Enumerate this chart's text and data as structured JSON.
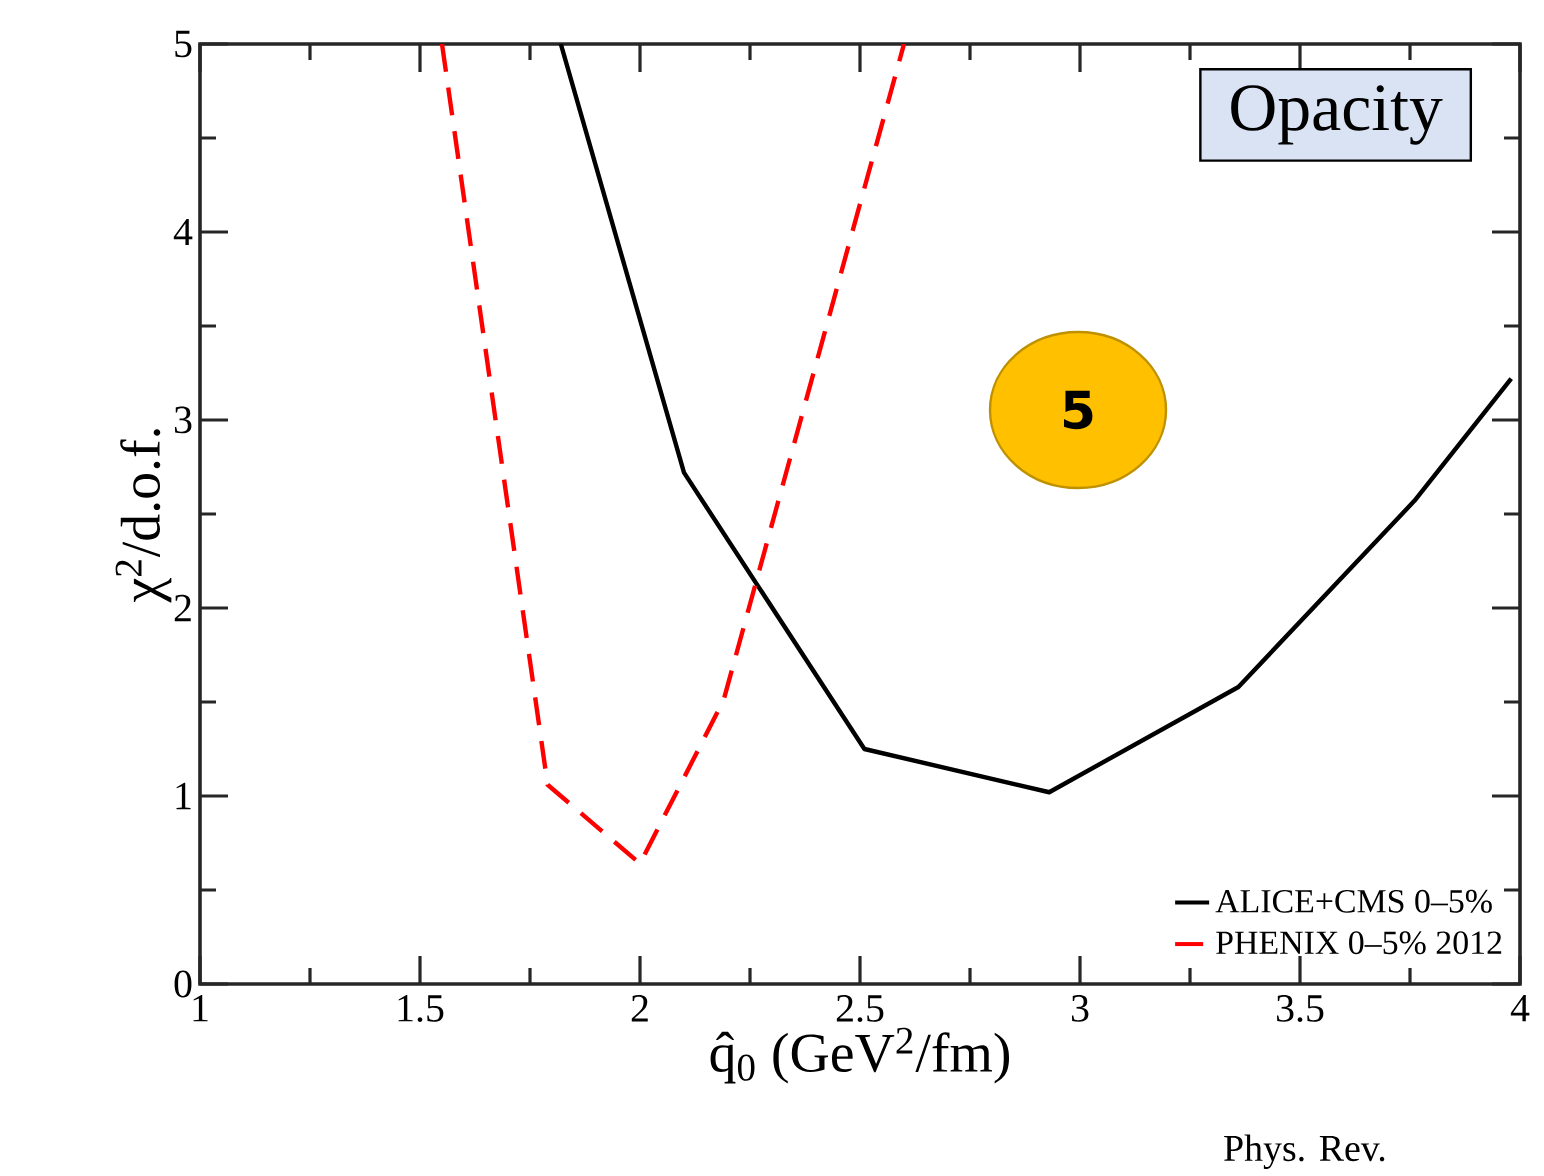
{
  "chart_data": {
    "type": "line",
    "xlabel": "q̂$_{0}$ (GeV$^{2}$/fm)",
    "ylabel": "χ$^{2}$/d.o.f.",
    "xlim": [
      1,
      4
    ],
    "ylim": [
      0,
      5
    ],
    "xticks": [
      1,
      1.5,
      2,
      2.5,
      3,
      3.5,
      4
    ],
    "yticks": [
      0,
      1,
      2,
      3,
      4,
      5
    ],
    "legend": "bottom right",
    "grid": false,
    "series": [
      {
        "name": "ALICE+CMS 0–5%",
        "color": "#000000",
        "line_style": "solid",
        "x": [
          1.82,
          2.1,
          2.51,
          2.93,
          3.36,
          3.76,
          3.98
        ],
        "values": [
          5,
          2.72,
          1.25,
          1.02,
          1.58,
          2.57,
          3.22
        ]
      },
      {
        "name": "PHENIX 0–5% 2012",
        "color": "#ff0000",
        "line_style": "dashed",
        "x": [
          1.55,
          1.79,
          2.0,
          2.19,
          2.6
        ],
        "values": [
          5,
          1.06,
          0.64,
          1.51,
          5
        ]
      }
    ],
    "annotations": [
      "Opacity",
      "5",
      "Phys. Rev."
    ]
  }
}
